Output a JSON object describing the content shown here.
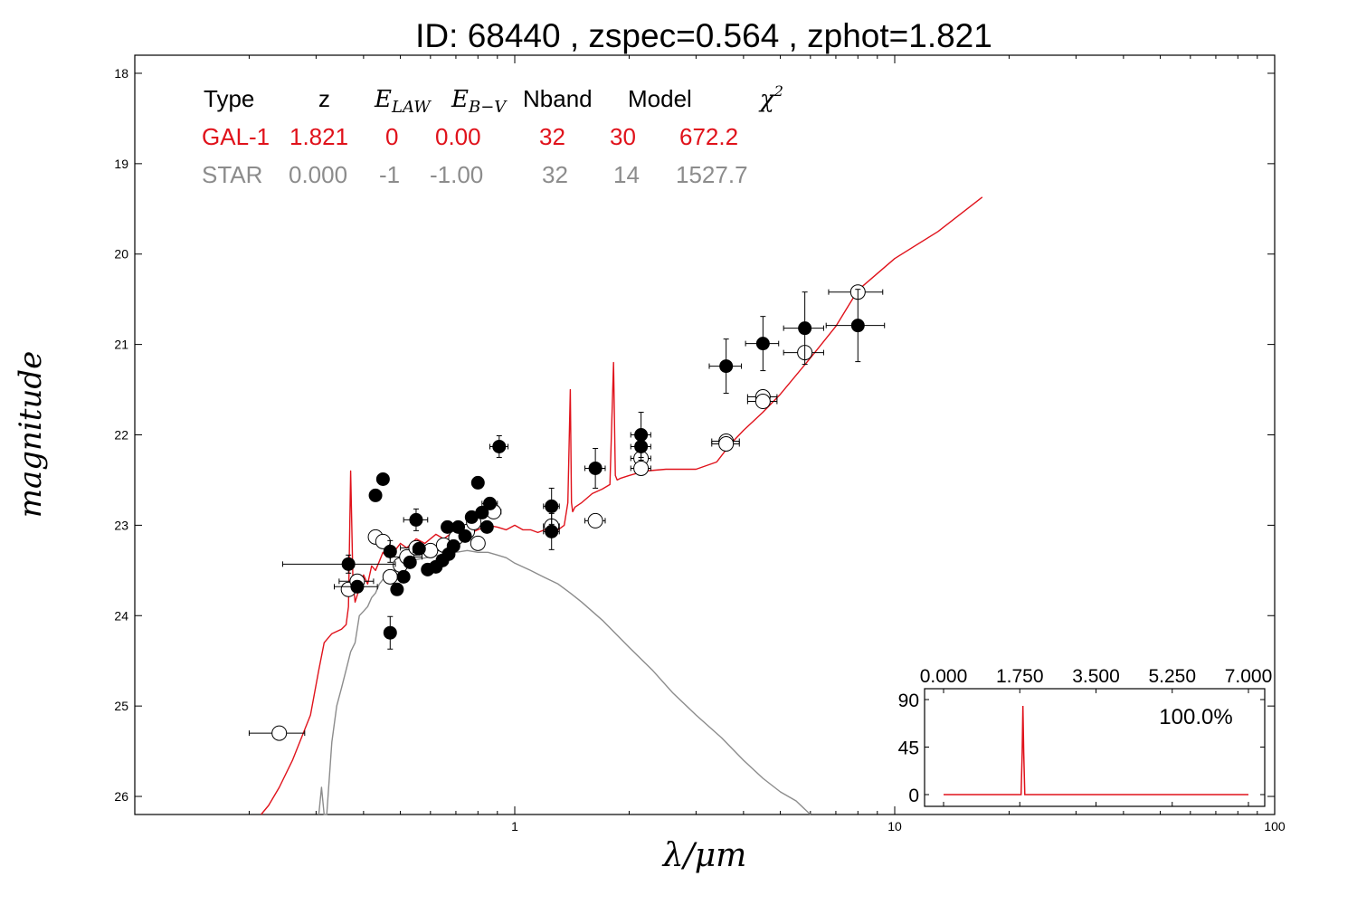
{
  "title": "ID:  68440 , zspec=0.564 , zphot=1.821",
  "colors": {
    "galaxy": "#e0121b",
    "star": "#8c8c8c",
    "text": "#000000",
    "axis": "#000000"
  },
  "fit_table": {
    "headers": {
      "type": "Type",
      "z": "z",
      "elaw_main": "E",
      "elaw_sub": "LAW",
      "ebv_main": "E",
      "ebv_sub": "B−V",
      "nband": "Nband",
      "model": "Model",
      "chi_main": "χ",
      "chi_sup": "2"
    },
    "galaxy_row": {
      "type": "GAL-1",
      "z": "1.821",
      "elaw": "0",
      "ebv": "0.00",
      "nband": "32",
      "model": "30",
      "chi2": "672.2"
    },
    "star_row": {
      "type": "STAR",
      "z": "0.000",
      "elaw": "-1",
      "ebv": "-1.00",
      "nband": "32",
      "model": "14",
      "chi2": "1527.7"
    }
  },
  "main_chart": {
    "type": "scatter",
    "x_scale": "log",
    "y_inverted": true,
    "xlabel_main": "λ/μm",
    "ylabel": "magnitude",
    "xlim": [
      0.1,
      100
    ],
    "ylim": [
      17.8,
      26.2
    ],
    "x_ticks": [
      {
        "value": 1,
        "label": "1"
      },
      {
        "value": 10,
        "label": "10"
      },
      {
        "value": 100,
        "label": "100"
      }
    ],
    "y_ticks": [
      {
        "value": 18,
        "label": "18"
      },
      {
        "value": 19,
        "label": "19"
      },
      {
        "value": 20,
        "label": "20"
      },
      {
        "value": 21,
        "label": "21"
      },
      {
        "value": 22,
        "label": "22"
      },
      {
        "value": 23,
        "label": "23"
      },
      {
        "value": 24,
        "label": "24"
      },
      {
        "value": 25,
        "label": "25"
      },
      {
        "value": 26,
        "label": "26"
      }
    ]
  },
  "chart_data": [
    {
      "type": "line",
      "name": "GAL-1",
      "x": [
        0.215,
        0.225,
        0.24,
        0.26,
        0.29,
        0.305,
        0.315,
        0.33,
        0.35,
        0.36,
        0.365,
        0.37,
        0.375,
        0.38,
        0.39,
        0.4,
        0.41,
        0.42,
        0.43,
        0.44,
        0.45,
        0.46,
        0.47,
        0.48,
        0.5,
        0.52,
        0.55,
        0.58,
        0.62,
        0.65,
        0.7,
        0.75,
        0.8,
        0.85,
        0.9,
        0.95,
        1.0,
        1.05,
        1.1,
        1.15,
        1.2,
        1.25,
        1.3,
        1.35,
        1.38,
        1.4,
        1.41,
        1.42,
        1.44,
        1.5,
        1.6,
        1.7,
        1.78,
        1.82,
        1.84,
        1.86,
        1.9,
        2.0,
        2.2,
        2.5,
        3.0,
        3.4,
        3.7,
        4.0,
        4.5,
        5.0,
        6.0,
        7.0,
        8.0,
        10.0,
        13.0,
        17.0
      ],
      "y": [
        26.2,
        26.1,
        25.9,
        25.6,
        25.1,
        24.6,
        24.3,
        24.2,
        24.15,
        24.1,
        23.9,
        22.4,
        23.6,
        23.85,
        23.7,
        23.55,
        23.65,
        23.45,
        23.5,
        23.4,
        23.3,
        23.35,
        23.25,
        23.3,
        23.2,
        23.25,
        23.15,
        23.2,
        23.1,
        23.15,
        23.05,
        23.1,
        23.05,
        23.0,
        23.02,
        23.05,
        23.0,
        23.05,
        23.05,
        23.08,
        23.05,
        23.1,
        23.05,
        23.0,
        22.75,
        21.5,
        22.75,
        22.85,
        22.8,
        22.75,
        22.65,
        22.6,
        22.55,
        21.2,
        22.45,
        22.5,
        22.48,
        22.45,
        22.4,
        22.38,
        22.38,
        22.3,
        22.1,
        21.95,
        21.75,
        21.55,
        21.15,
        20.8,
        20.4,
        20.05,
        19.75,
        19.37
      ]
    },
    {
      "type": "line",
      "name": "STAR",
      "x": [
        0.305,
        0.31,
        0.315,
        0.32,
        0.33,
        0.34,
        0.35,
        0.36,
        0.37,
        0.38,
        0.39,
        0.4,
        0.41,
        0.42,
        0.43,
        0.44,
        0.45,
        0.46,
        0.48,
        0.5,
        0.55,
        0.6,
        0.65,
        0.7,
        0.75,
        0.8,
        0.85,
        0.9,
        0.95,
        1.0,
        1.1,
        1.2,
        1.3,
        1.4,
        1.5,
        1.7,
        2.0,
        2.3,
        2.6,
        3.0,
        3.5,
        4.0,
        4.5,
        5.0,
        5.5,
        6.0
      ],
      "y": [
        26.2,
        25.9,
        26.2,
        26.2,
        25.4,
        25.0,
        24.8,
        24.6,
        24.4,
        24.3,
        24.0,
        23.95,
        23.9,
        23.8,
        23.75,
        23.65,
        23.6,
        23.55,
        23.5,
        23.45,
        23.38,
        23.35,
        23.32,
        23.3,
        23.28,
        23.3,
        23.3,
        23.33,
        23.36,
        23.42,
        23.5,
        23.58,
        23.65,
        23.75,
        23.85,
        24.05,
        24.35,
        24.6,
        24.85,
        25.1,
        25.35,
        25.6,
        25.8,
        25.95,
        26.05,
        26.2
      ]
    },
    {
      "type": "scatter",
      "name": "observed",
      "points": [
        {
          "x": 0.365,
          "y": 23.43,
          "xerr": 0.12,
          "yerr": 0.1
        },
        {
          "x": 0.385,
          "y": 23.68,
          "xerr": 0.05,
          "yerr": 0.05
        },
        {
          "x": 0.43,
          "y": 22.67,
          "xerr": 0.0,
          "yerr": 0.0
        },
        {
          "x": 0.45,
          "y": 22.49,
          "xerr": 0.0,
          "yerr": 0.0
        },
        {
          "x": 0.47,
          "y": 23.29,
          "xerr": 0.0,
          "yerr": 0.12
        },
        {
          "x": 0.47,
          "y": 24.19,
          "xerr": 0.0,
          "yerr": 0.18
        },
        {
          "x": 0.49,
          "y": 23.71,
          "xerr": 0.0,
          "yerr": 0.0
        },
        {
          "x": 0.51,
          "y": 23.57,
          "xerr": 0.0,
          "yerr": 0.0
        },
        {
          "x": 0.53,
          "y": 23.41,
          "xerr": 0.0,
          "yerr": 0.0
        },
        {
          "x": 0.55,
          "y": 22.94,
          "xerr": 0.04,
          "yerr": 0.12
        },
        {
          "x": 0.56,
          "y": 23.26,
          "xerr": 0.0,
          "yerr": 0.0
        },
        {
          "x": 0.59,
          "y": 23.49,
          "xerr": 0.0,
          "yerr": 0.0
        },
        {
          "x": 0.62,
          "y": 23.46,
          "xerr": 0.0,
          "yerr": 0.0
        },
        {
          "x": 0.645,
          "y": 23.39,
          "xerr": 0.0,
          "yerr": 0.0
        },
        {
          "x": 0.665,
          "y": 23.02,
          "xerr": 0.0,
          "yerr": 0.0
        },
        {
          "x": 0.67,
          "y": 23.32,
          "xerr": 0.0,
          "yerr": 0.0
        },
        {
          "x": 0.69,
          "y": 23.23,
          "xerr": 0.0,
          "yerr": 0.0
        },
        {
          "x": 0.71,
          "y": 23.02,
          "xerr": 0.0,
          "yerr": 0.0
        },
        {
          "x": 0.74,
          "y": 23.12,
          "xerr": 0.0,
          "yerr": 0.0
        },
        {
          "x": 0.77,
          "y": 22.91,
          "xerr": 0.0,
          "yerr": 0.0
        },
        {
          "x": 0.8,
          "y": 22.53,
          "xerr": 0.0,
          "yerr": 0.0
        },
        {
          "x": 0.82,
          "y": 22.86,
          "xerr": 0.0,
          "yerr": 0.0
        },
        {
          "x": 0.845,
          "y": 23.02,
          "xerr": 0.02,
          "yerr": 0.0
        },
        {
          "x": 0.86,
          "y": 22.76,
          "xerr": 0.04,
          "yerr": 0.0
        },
        {
          "x": 0.91,
          "y": 22.13,
          "xerr": 0.05,
          "yerr": 0.12
        },
        {
          "x": 1.25,
          "y": 22.79,
          "xerr": 0.06,
          "yerr": 0.2
        },
        {
          "x": 1.25,
          "y": 23.07,
          "xerr": 0.06,
          "yerr": 0.2
        },
        {
          "x": 1.63,
          "y": 22.37,
          "xerr": 0.1,
          "yerr": 0.22
        },
        {
          "x": 2.15,
          "y": 22.0,
          "xerr": 0.13,
          "yerr": 0.25
        },
        {
          "x": 2.15,
          "y": 22.13,
          "xerr": 0.13,
          "yerr": 0.15
        },
        {
          "x": 3.6,
          "y": 21.24,
          "xerr": 0.35,
          "yerr": 0.3
        },
        {
          "x": 4.5,
          "y": 20.99,
          "xerr": 0.45,
          "yerr": 0.3
        },
        {
          "x": 5.8,
          "y": 20.82,
          "xerr": 0.7,
          "yerr": 0.4
        },
        {
          "x": 8.0,
          "y": 20.79,
          "xerr": 1.4,
          "yerr": 0.4
        }
      ]
    },
    {
      "type": "scatter",
      "name": "model",
      "points": [
        {
          "x": 0.24,
          "y": 25.3,
          "xerr": 0.04
        },
        {
          "x": 0.365,
          "y": 23.71,
          "xerr": 0.0
        },
        {
          "x": 0.385,
          "y": 23.62,
          "xerr": 0.04
        },
        {
          "x": 0.43,
          "y": 23.13,
          "xerr": 0.0
        },
        {
          "x": 0.45,
          "y": 23.18,
          "xerr": 0.0
        },
        {
          "x": 0.47,
          "y": 23.57,
          "xerr": 0.0
        },
        {
          "x": 0.5,
          "y": 23.44,
          "xerr": 0.0
        },
        {
          "x": 0.52,
          "y": 23.35,
          "xerr": 0.05
        },
        {
          "x": 0.55,
          "y": 23.25,
          "xerr": 0.05
        },
        {
          "x": 0.6,
          "y": 23.28,
          "xerr": 0.06
        },
        {
          "x": 0.65,
          "y": 23.22,
          "xerr": 0.0
        },
        {
          "x": 0.7,
          "y": 23.14,
          "xerr": 0.0
        },
        {
          "x": 0.75,
          "y": 23.07,
          "xerr": 0.0
        },
        {
          "x": 0.78,
          "y": 22.97,
          "xerr": 0.03
        },
        {
          "x": 0.8,
          "y": 23.2,
          "xerr": 0.03
        },
        {
          "x": 0.88,
          "y": 22.85,
          "xerr": 0.04
        },
        {
          "x": 1.25,
          "y": 23.01,
          "xerr": 0.06
        },
        {
          "x": 1.63,
          "y": 22.95,
          "xerr": 0.1
        },
        {
          "x": 2.15,
          "y": 22.26,
          "xerr": 0.13
        },
        {
          "x": 2.15,
          "y": 22.37,
          "xerr": 0.13
        },
        {
          "x": 3.6,
          "y": 22.07,
          "xerr": 0.3
        },
        {
          "x": 3.6,
          "y": 22.1,
          "xerr": 0.3
        },
        {
          "x": 4.5,
          "y": 21.58,
          "xerr": 0.4
        },
        {
          "x": 4.5,
          "y": 21.63,
          "xerr": 0.4
        },
        {
          "x": 5.8,
          "y": 21.09,
          "xerr": 0.7
        },
        {
          "x": 8.0,
          "y": 20.42,
          "xerr": 1.3
        }
      ]
    },
    {
      "type": "line",
      "name": "pdz_inset",
      "percent_label": "100.0%",
      "xlim": [
        0.0,
        7.0
      ],
      "ylim": [
        -10,
        95
      ],
      "x_ticks": [
        "0.000",
        "1.750",
        "3.500",
        "5.250",
        "7.000"
      ],
      "x_tick_values": [
        0.0,
        1.75,
        3.5,
        5.25,
        7.0
      ],
      "y_ticks": [
        "0",
        "45",
        "90"
      ],
      "y_tick_values": [
        0,
        45,
        90
      ],
      "x": [
        0.0,
        1.78,
        1.805,
        1.821,
        1.84,
        1.865,
        7.0
      ],
      "y": [
        0,
        0,
        40,
        84,
        40,
        0,
        0
      ]
    }
  ]
}
